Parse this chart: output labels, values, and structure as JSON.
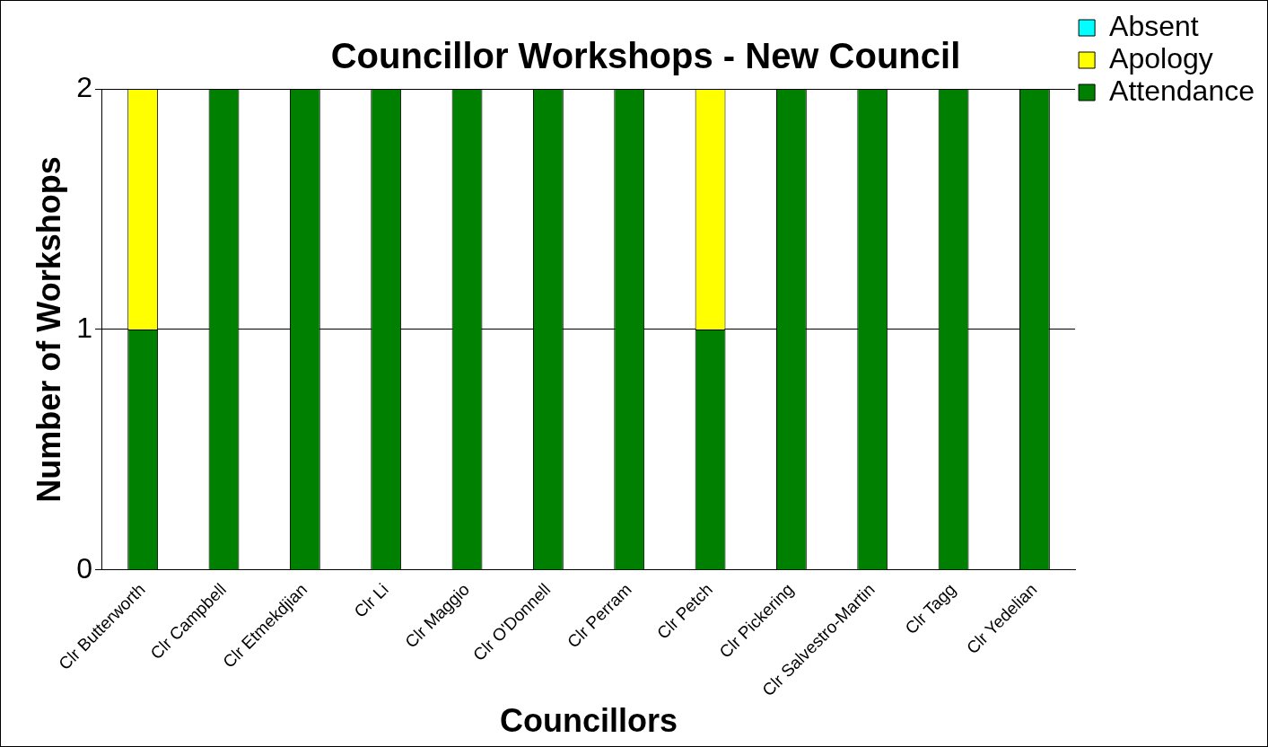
{
  "chart_data": {
    "type": "bar",
    "title": "Councillor Workshops - New Council",
    "xlabel": "Councillors",
    "ylabel": "Number of Workshops",
    "categories": [
      "Clr Butterworth",
      "Clr Campbell",
      "Clr Etmekdjian",
      "Clr Li",
      "Clr Maggio",
      "Clr O'Donnell",
      "Clr Perram",
      "Clr Petch",
      "Clr Pickering",
      "Clr Salvestro-Martin",
      "Clr Tagg",
      "Clr Yedelian"
    ],
    "stacked": true,
    "series": [
      {
        "name": "Attendance",
        "color": "#008000",
        "values": [
          1,
          2,
          2,
          2,
          2,
          2,
          2,
          1,
          2,
          2,
          2,
          2
        ]
      },
      {
        "name": "Apology",
        "color": "#ffff00",
        "values": [
          1,
          0,
          0,
          0,
          0,
          0,
          0,
          1,
          0,
          0,
          0,
          0
        ]
      },
      {
        "name": "Absent",
        "color": "#00ffff",
        "values": [
          0,
          0,
          0,
          0,
          0,
          0,
          0,
          0,
          0,
          0,
          0,
          0
        ]
      }
    ],
    "ylim": [
      0,
      2
    ],
    "yticks": [
      0,
      1,
      2
    ],
    "grid": "y",
    "legend": "top right"
  }
}
